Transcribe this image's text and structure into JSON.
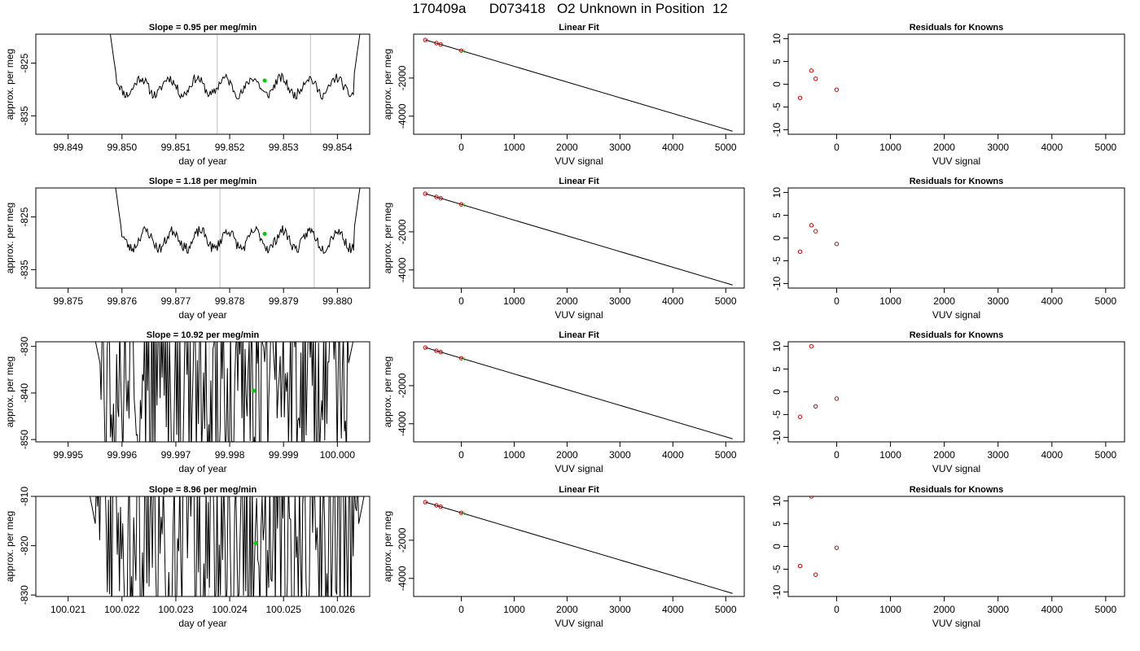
{
  "figure": {
    "title": "170409a      D073418   O2 Unknown in Position  12"
  },
  "colors": {
    "trace": "#000000",
    "unknown": "#00cc00",
    "known": "#cc0000",
    "vline": "#bfbfbf",
    "box": "#000000"
  },
  "chart_data": [
    {
      "type": "line",
      "row": 1,
      "panel": "time",
      "title": "Slope =  0.95  per meg/min",
      "xlabel": "day of year",
      "ylabel": "approx. per meg",
      "xlim": [
        99.8484,
        99.8546
      ],
      "ylim": [
        -838.5,
        -819.5
      ],
      "xticks": [
        99.849,
        99.85,
        99.851,
        99.852,
        99.853,
        99.854
      ],
      "xtick_labels": [
        "99.849",
        "99.850",
        "99.851",
        "99.852",
        "99.853",
        "99.854"
      ],
      "yticks": [
        -835,
        -825
      ],
      "trace_start": 99.8497,
      "trace_end": 99.8545,
      "trace_mean": -829.4,
      "trace_amp": 1.6,
      "trace_noise": 0.9,
      "trace_clip": false,
      "seed": 11,
      "vlines": [
        99.85177,
        99.8535
      ],
      "unknown_point": {
        "x": 99.85265,
        "y": -828.3
      }
    },
    {
      "type": "line",
      "row": 1,
      "panel": "fit",
      "title": "Linear Fit",
      "xlabel": "VUV signal",
      "ylabel": "approx. per meg",
      "xlim": [
        -900,
        5350
      ],
      "ylim": [
        -4950,
        300
      ],
      "xticks": [
        0,
        1000,
        2000,
        3000,
        4000,
        5000
      ],
      "yticks": [
        -4000,
        -2000
      ],
      "line": {
        "x": [
          -680,
          5130
        ],
        "y": [
          0,
          -4790
        ]
      },
      "knowns": {
        "x": [
          -680,
          -470,
          -390,
          0
        ],
        "y": [
          0,
          -170,
          -240,
          -560
        ]
      },
      "unknown": {
        "x": 40,
        "y": -590
      }
    },
    {
      "type": "scatter",
      "row": 1,
      "panel": "resid",
      "title": "Residuals for Knowns",
      "xlabel": "VUV signal",
      "ylabel": "",
      "xlim": [
        -900,
        5350
      ],
      "ylim": [
        -11,
        11
      ],
      "xticks": [
        0,
        1000,
        2000,
        3000,
        4000,
        5000
      ],
      "yticks": [
        -10,
        -5,
        0,
        5,
        10
      ],
      "x": [
        -680,
        -470,
        -390,
        0
      ],
      "y": [
        -3,
        3,
        1.2,
        -1.2
      ]
    },
    {
      "type": "line",
      "row": 2,
      "panel": "time",
      "title": "Slope =  1.18  per meg/min",
      "xlabel": "day of year",
      "ylabel": "approx. per meg",
      "xlim": [
        99.8744,
        99.8806
      ],
      "ylim": [
        -838.5,
        -819.5
      ],
      "xticks": [
        99.875,
        99.876,
        99.877,
        99.878,
        99.879,
        99.88
      ],
      "xtick_labels": [
        "99.875",
        "99.876",
        "99.877",
        "99.878",
        "99.879",
        "99.880"
      ],
      "yticks": [
        -835,
        -825
      ],
      "trace_start": 99.8758,
      "trace_end": 99.8805,
      "trace_mean": -829.3,
      "trace_amp": 1.7,
      "trace_noise": 1.0,
      "trace_clip": false,
      "seed": 23,
      "vlines": [
        99.87782,
        99.87957
      ],
      "unknown_point": {
        "x": 99.87865,
        "y": -828.2
      }
    },
    {
      "type": "line",
      "row": 2,
      "panel": "fit",
      "title": "Linear Fit",
      "xlabel": "VUV signal",
      "ylabel": "approx. per meg",
      "xlim": [
        -900,
        5350
      ],
      "ylim": [
        -4950,
        300
      ],
      "xticks": [
        0,
        1000,
        2000,
        3000,
        4000,
        5000
      ],
      "yticks": [
        -4000,
        -2000
      ],
      "line": {
        "x": [
          -680,
          5130
        ],
        "y": [
          0,
          -4790
        ]
      },
      "knowns": {
        "x": [
          -680,
          -470,
          -390,
          0
        ],
        "y": [
          0,
          -170,
          -240,
          -560
        ]
      },
      "unknown": {
        "x": 40,
        "y": -590
      }
    },
    {
      "type": "scatter",
      "row": 2,
      "panel": "resid",
      "title": "Residuals for Knowns",
      "xlabel": "VUV signal",
      "ylabel": "",
      "xlim": [
        -900,
        5350
      ],
      "ylim": [
        -11,
        11
      ],
      "xticks": [
        0,
        1000,
        2000,
        3000,
        4000,
        5000
      ],
      "yticks": [
        -10,
        -5,
        0,
        5,
        10
      ],
      "x": [
        -680,
        -470,
        -390,
        0
      ],
      "y": [
        -3,
        2.8,
        1.5,
        -1.3
      ]
    },
    {
      "type": "line",
      "row": 3,
      "panel": "time",
      "title": "Slope =  10.92  per meg/min",
      "xlabel": "day of year",
      "ylabel": "approx. per meg",
      "xlim": [
        99.9944,
        100.0006
      ],
      "ylim": [
        -850.5,
        -829
      ],
      "xticks": [
        99.995,
        99.996,
        99.997,
        99.998,
        99.999,
        100.0
      ],
      "xtick_labels": [
        "99.995",
        "99.996",
        "99.997",
        "99.998",
        "99.999",
        "100.000"
      ],
      "yticks": [
        -850,
        -840,
        -830
      ],
      "trace_start": 99.9954,
      "trace_end": 100.0004,
      "trace_mean": -836,
      "trace_amp": 4,
      "trace_noise": 16,
      "trace_clip": true,
      "seed": 37,
      "vlines": [
        99.99762,
        99.99936
      ],
      "unknown_point": {
        "x": 99.99845,
        "y": -839.5
      }
    },
    {
      "type": "line",
      "row": 3,
      "panel": "fit",
      "title": "Linear Fit",
      "xlabel": "VUV signal",
      "ylabel": "approx. per meg",
      "xlim": [
        -900,
        5350
      ],
      "ylim": [
        -4950,
        300
      ],
      "xticks": [
        0,
        1000,
        2000,
        3000,
        4000,
        5000
      ],
      "yticks": [
        -4000,
        -2000
      ],
      "line": {
        "x": [
          -680,
          5130
        ],
        "y": [
          0,
          -4790
        ]
      },
      "knowns": {
        "x": [
          -680,
          -470,
          -390,
          0
        ],
        "y": [
          0,
          -170,
          -240,
          -560
        ]
      },
      "unknown": {
        "x": 40,
        "y": -590
      }
    },
    {
      "type": "scatter",
      "row": 3,
      "panel": "resid",
      "title": "Residuals for Knowns",
      "xlabel": "VUV signal",
      "ylabel": "",
      "xlim": [
        -900,
        5350
      ],
      "ylim": [
        -11,
        11
      ],
      "xticks": [
        0,
        1000,
        2000,
        3000,
        4000,
        5000
      ],
      "yticks": [
        -10,
        -5,
        0,
        5,
        10
      ],
      "x": [
        -680,
        -470,
        -390,
        0
      ],
      "y": [
        -5.5,
        10,
        -3.2,
        -1.5
      ]
    },
    {
      "type": "line",
      "row": 4,
      "panel": "time",
      "title": "Slope =  8.96  per meg/min",
      "xlabel": "day of year",
      "ylabel": "approx. per meg",
      "xlim": [
        100.0204,
        100.0266
      ],
      "ylim": [
        -830.3,
        -810
      ],
      "xticks": [
        100.021,
        100.022,
        100.023,
        100.024,
        100.025,
        100.026
      ],
      "xtick_labels": [
        "100.021",
        "100.022",
        "100.023",
        "100.024",
        "100.025",
        "100.026"
      ],
      "yticks": [
        -830,
        -820,
        -810
      ],
      "trace_start": 100.0213,
      "trace_end": 100.0266,
      "trace_mean": -818,
      "trace_amp": 4,
      "trace_noise": 16,
      "trace_clip": true,
      "seed": 53,
      "vlines": [
        100.02361,
        100.02535
      ],
      "unknown_point": {
        "x": 100.02448,
        "y": -819.5
      }
    },
    {
      "type": "line",
      "row": 4,
      "panel": "fit",
      "title": "Linear Fit",
      "xlabel": "VUV signal",
      "ylabel": "approx. per meg",
      "xlim": [
        -900,
        5350
      ],
      "ylim": [
        -4950,
        300
      ],
      "xticks": [
        0,
        1000,
        2000,
        3000,
        4000,
        5000
      ],
      "yticks": [
        -4000,
        -2000
      ],
      "line": {
        "x": [
          -680,
          5130
        ],
        "y": [
          0,
          -4790
        ]
      },
      "knowns": {
        "x": [
          -680,
          -470,
          -390,
          0
        ],
        "y": [
          0,
          -170,
          -240,
          -560
        ]
      },
      "unknown": {
        "x": 40,
        "y": -590
      }
    },
    {
      "type": "scatter",
      "row": 4,
      "panel": "resid",
      "title": "Residuals for Knowns",
      "xlabel": "VUV signal",
      "ylabel": "",
      "xlim": [
        -900,
        5350
      ],
      "ylim": [
        -11,
        11
      ],
      "xticks": [
        0,
        1000,
        2000,
        3000,
        4000,
        5000
      ],
      "yticks": [
        -10,
        -5,
        0,
        5,
        10
      ],
      "x": [
        -680,
        -470,
        -390,
        0
      ],
      "y": [
        -4.3,
        11,
        -6.2,
        -0.3
      ]
    }
  ]
}
